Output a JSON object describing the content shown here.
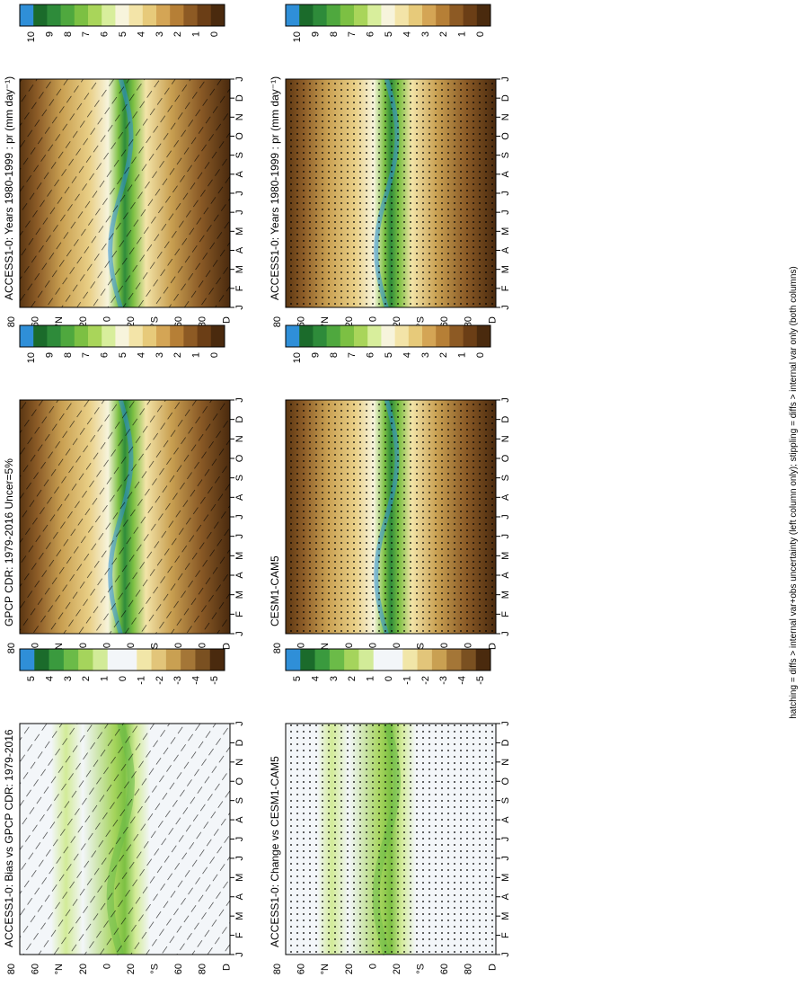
{
  "footnote": "hatching = diffs > internal var+obs uncertainty (left column only); stippling = diffs > internal var only (both columns)",
  "chart_data": [
    {
      "type": "heatmap",
      "title": "ACCESS1-0: Years 1980-1999 : pr (mm day⁻¹)",
      "x": [
        "J",
        "F",
        "M",
        "A",
        "M",
        "J",
        "J",
        "A",
        "S",
        "O",
        "N",
        "D",
        "J"
      ],
      "y": [
        "80",
        "60",
        "°N",
        "20",
        "0",
        "20",
        "°S",
        "60",
        "80",
        "D"
      ],
      "colorbar": [
        "10",
        "9",
        "8",
        "7",
        "6",
        "5",
        "4",
        "3",
        "2",
        "1",
        "0"
      ],
      "kind": "clim",
      "overlay": "hatch"
    },
    {
      "type": "heatmap",
      "title": "ACCESS1-0: Years 1980-1999 : pr (mm day⁻¹)",
      "x": [
        "J",
        "F",
        "M",
        "A",
        "M",
        "J",
        "J",
        "A",
        "S",
        "O",
        "N",
        "D",
        "J"
      ],
      "y": [
        "80",
        "60",
        "°N",
        "20",
        "0",
        "20",
        "°S",
        "60",
        "80",
        "D"
      ],
      "colorbar": [
        "10",
        "9",
        "8",
        "7",
        "6",
        "5",
        "4",
        "3",
        "2",
        "1",
        "0"
      ],
      "kind": "clim",
      "overlay": "stipple"
    },
    {
      "type": "heatmap",
      "title": "GPCP CDR: 1979-2016 Uncer=5%",
      "x": [
        "J",
        "F",
        "M",
        "A",
        "M",
        "J",
        "J",
        "A",
        "S",
        "O",
        "N",
        "D",
        "J"
      ],
      "y": [
        "80",
        "60",
        "°N",
        "20",
        "0",
        "20",
        "°S",
        "60",
        "80",
        "D"
      ],
      "colorbar": [
        "10",
        "9",
        "8",
        "7",
        "6",
        "5",
        "4",
        "3",
        "2",
        "1",
        "0"
      ],
      "kind": "clim",
      "overlay": "hatch"
    },
    {
      "type": "heatmap",
      "title": "CESM1-CAM5",
      "x": [
        "J",
        "F",
        "M",
        "A",
        "M",
        "J",
        "J",
        "A",
        "S",
        "O",
        "N",
        "D",
        "J"
      ],
      "y": [
        "80",
        "60",
        "°N",
        "20",
        "0",
        "20",
        "°S",
        "60",
        "80",
        "D"
      ],
      "colorbar": [
        "10",
        "9",
        "8",
        "7",
        "6",
        "5",
        "4",
        "3",
        "2",
        "1",
        "0"
      ],
      "kind": "clim",
      "overlay": "stipple"
    },
    {
      "type": "heatmap",
      "title": "ACCESS1-0: Bias vs GPCP CDR: 1979-2016",
      "x": [
        "J",
        "F",
        "M",
        "A",
        "M",
        "J",
        "J",
        "A",
        "S",
        "O",
        "N",
        "D",
        "J"
      ],
      "y": [
        "80",
        "60",
        "°N",
        "20",
        "0",
        "20",
        "°S",
        "60",
        "80",
        "D"
      ],
      "colorbar": [
        "5",
        "4",
        "3",
        "2",
        "1",
        "0",
        "-1",
        "-2",
        "-3",
        "-4",
        "-5"
      ],
      "kind": "diff",
      "overlay": "hatch"
    },
    {
      "type": "heatmap",
      "title": "ACCESS1-0: Change vs CESM1-CAM5",
      "x": [
        "J",
        "F",
        "M",
        "A",
        "M",
        "J",
        "J",
        "A",
        "S",
        "O",
        "N",
        "D",
        "J"
      ],
      "y": [
        "80",
        "60",
        "°N",
        "20",
        "0",
        "20",
        "°S",
        "60",
        "80",
        "D"
      ],
      "colorbar": [
        "5",
        "4",
        "3",
        "2",
        "1",
        "0",
        "-1",
        "-2",
        "-3",
        "-4",
        "-5"
      ],
      "kind": "diff",
      "overlay": "stipple"
    }
  ]
}
